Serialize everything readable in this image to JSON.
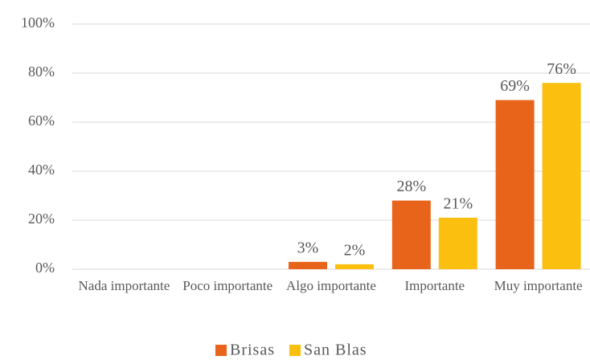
{
  "chart_data": {
    "type": "bar",
    "categories": [
      "Nada importante",
      "Poco importante",
      "Algo importante",
      "Importante",
      "Muy importante"
    ],
    "series": [
      {
        "name": "Brisas",
        "color": "#e8641b",
        "values": [
          null,
          null,
          3,
          28,
          69
        ],
        "value_labels": [
          null,
          null,
          "3%",
          "28%",
          "69%"
        ]
      },
      {
        "name": "San Blas",
        "color": "#fbbf0f",
        "values": [
          null,
          null,
          2,
          21,
          76
        ],
        "value_labels": [
          null,
          null,
          "2%",
          "21%",
          "76%"
        ]
      }
    ],
    "ylim": [
      0,
      100
    ],
    "yticks": [
      {
        "value": 0,
        "label": "0%"
      },
      {
        "value": 20,
        "label": "20%"
      },
      {
        "value": 40,
        "label": "40%"
      },
      {
        "value": 60,
        "label": "60%"
      },
      {
        "value": 80,
        "label": "80%"
      },
      {
        "value": 100,
        "label": "100%"
      }
    ],
    "grid": true,
    "legend": "bottom"
  }
}
